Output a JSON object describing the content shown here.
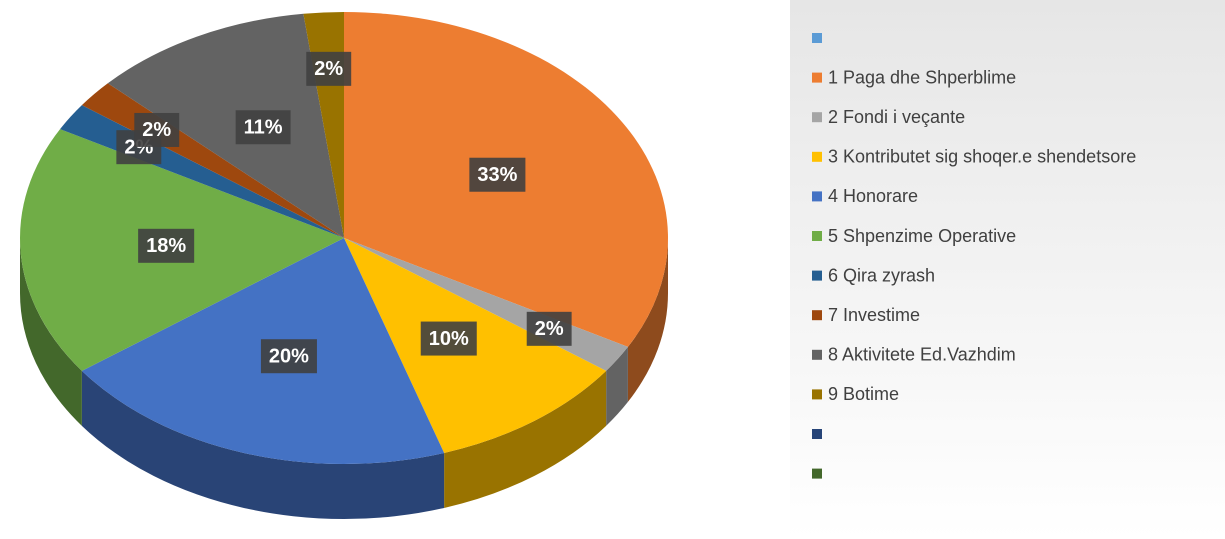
{
  "chart_data": {
    "type": "pie",
    "categories": [
      null,
      "1 Paga dhe Shperblime",
      "2 Fondi i veçante",
      "3 Kontributet sig shoqer.e shendetsore",
      "4 Honorare",
      "5 Shpenzime Operative",
      "6 Qira zyrash",
      "7 Investime",
      "8 Aktivitete Ed.Vazhdim",
      "9 Botime",
      null,
      null
    ],
    "values": [
      null,
      33,
      2,
      10,
      20,
      18,
      2,
      2,
      11,
      2,
      null,
      null
    ],
    "value_labels": [
      null,
      "33%",
      "2%",
      "10%",
      "20%",
      "18%",
      "2%",
      "2%",
      "11%",
      "2%",
      null,
      null
    ],
    "colors": [
      "#5b9bd5",
      "#ed7d31",
      "#a5a5a5",
      "#ffc000",
      "#4472c4",
      "#70ad47",
      "#255e91",
      "#9e480e",
      "#636363",
      "#997300",
      "#264478",
      "#43682b"
    ],
    "legend": "right"
  }
}
